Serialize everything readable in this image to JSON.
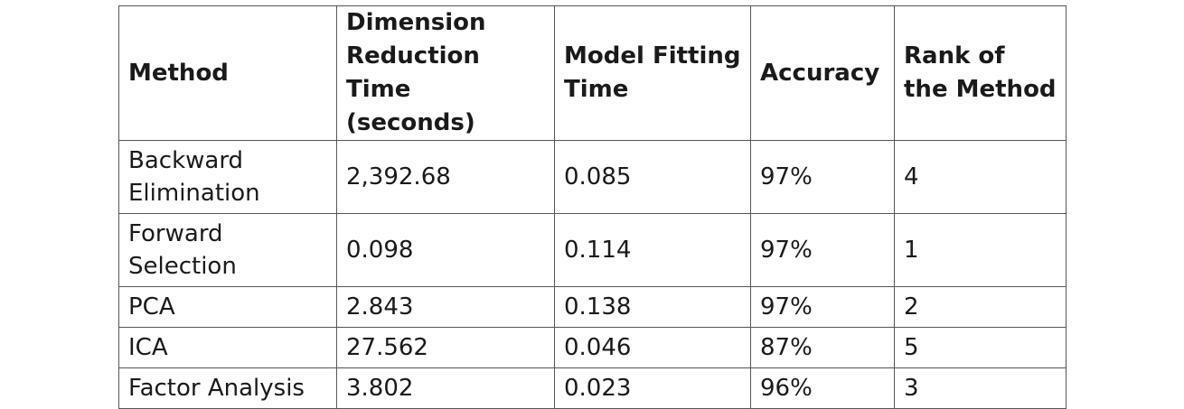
{
  "table": {
    "headers": [
      "Method",
      "Dimension Reduction Time (seconds)",
      "Model Fitting Time",
      "Accuracy",
      "Rank of the Method"
    ],
    "rows": [
      [
        "Backward Elimination",
        "2,392.68",
        "0.085",
        "97%",
        "4"
      ],
      [
        "Forward Selection",
        "0.098",
        "0.114",
        "97%",
        "1"
      ],
      [
        "PCA",
        "2.843",
        "0.138",
        "97%",
        "2"
      ],
      [
        "ICA",
        "27.562",
        "0.046",
        "87%",
        "5"
      ],
      [
        "Factor Analysis",
        "3.802",
        "0.023",
        "96%",
        "3"
      ]
    ]
  }
}
